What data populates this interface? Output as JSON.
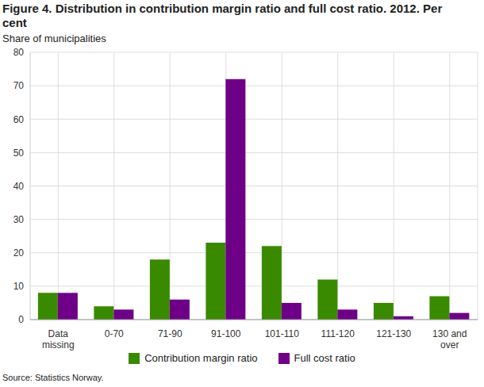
{
  "chart_data": {
    "type": "bar",
    "title": "Figure 4. Distribution in contribution margin ratio and full cost ratio. 2012. Per cent",
    "y_label": "Share of municipalities",
    "source": "Source: Statistics Norway.",
    "categories": [
      "Data missing",
      "0-70",
      "71-90",
      "91-100",
      "101-110",
      "111-120",
      "121-130",
      "130 and over"
    ],
    "series": [
      {
        "name": "Contribution margin ratio",
        "color": "#3a8a00",
        "values": [
          8,
          4,
          18,
          23,
          22,
          12,
          5,
          7
        ]
      },
      {
        "name": "Full cost ratio",
        "color": "#6e0087",
        "values": [
          8,
          3,
          6,
          72,
          5,
          3,
          1,
          2
        ]
      }
    ],
    "ylim": [
      0,
      80
    ],
    "yticks": [
      0,
      10,
      20,
      30,
      40,
      50,
      60,
      70,
      80
    ],
    "grid": true
  }
}
